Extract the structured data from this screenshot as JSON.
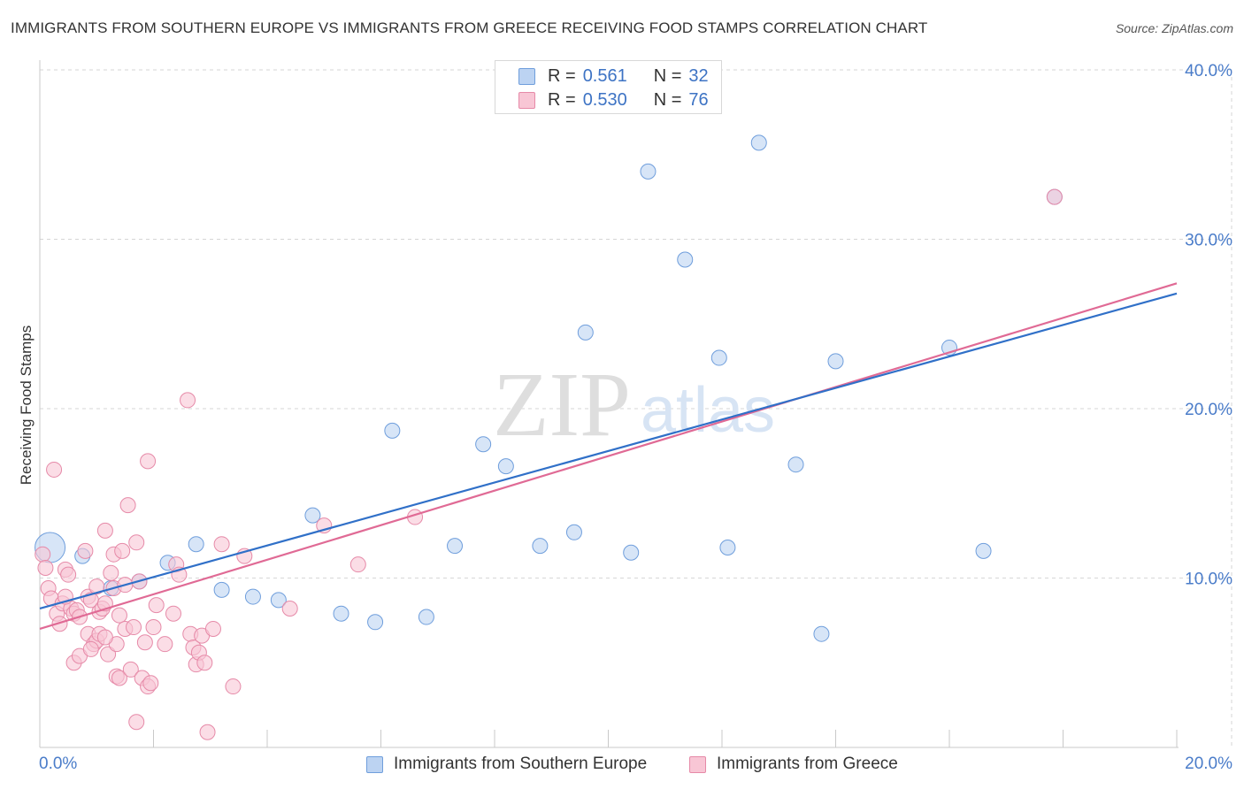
{
  "title": "IMMIGRANTS FROM SOUTHERN EUROPE VS IMMIGRANTS FROM GREECE RECEIVING FOOD STAMPS CORRELATION CHART",
  "source": "Source: ZipAtlas.com",
  "watermark": {
    "zip": "ZIP",
    "atlas": "atlas"
  },
  "legend": {
    "r_label": "R =",
    "n_label": "N =",
    "series": [
      {
        "name": "Immigrants from Southern Europe",
        "r": "0.561",
        "n": "32"
      },
      {
        "name": "Immigrants from Greece",
        "r": "0.530",
        "n": "76"
      }
    ]
  },
  "colors": {
    "blue_fill": "#bcd3f2",
    "blue_stroke": "#6f9edc",
    "blue_line": "#3070c8",
    "pink_fill": "#f8c6d5",
    "pink_stroke": "#e68aa8",
    "pink_line": "#e06a95",
    "tick_label": "#4a7cc9",
    "grid": "#d6d6d6"
  },
  "chart_data": {
    "type": "scatter",
    "title": "IMMIGRANTS FROM SOUTHERN EUROPE VS IMMIGRANTS FROM GREECE RECEIVING FOOD STAMPS CORRELATION CHART",
    "xlabel": "",
    "ylabel": "Receiving Food Stamps",
    "xlim": [
      0,
      20
    ],
    "ylim": [
      0,
      40
    ],
    "x_tick_labels": [
      "0.0%",
      "20.0%"
    ],
    "y_ticks": [
      10,
      20,
      30,
      40
    ],
    "y_tick_labels": [
      "10.0%",
      "20.0%",
      "30.0%",
      "40.0%"
    ],
    "grid": true,
    "legend_position": "top-center",
    "series": [
      {
        "name": "Immigrants from Southern Europe",
        "r": 0.561,
        "n": 32,
        "trend": {
          "x0": 0,
          "y0": 8.2,
          "x1": 20,
          "y1": 26.8
        },
        "points": [
          {
            "x": 0.18,
            "y": 11.8,
            "big": true
          },
          {
            "x": 0.75,
            "y": 11.3
          },
          {
            "x": 1.25,
            "y": 9.4
          },
          {
            "x": 1.75,
            "y": 9.8
          },
          {
            "x": 2.25,
            "y": 10.9
          },
          {
            "x": 2.75,
            "y": 12.0
          },
          {
            "x": 3.2,
            "y": 9.3
          },
          {
            "x": 3.75,
            "y": 8.9
          },
          {
            "x": 4.2,
            "y": 8.7
          },
          {
            "x": 4.8,
            "y": 13.7
          },
          {
            "x": 5.3,
            "y": 7.9
          },
          {
            "x": 5.9,
            "y": 7.4
          },
          {
            "x": 6.2,
            "y": 18.7
          },
          {
            "x": 6.8,
            "y": 7.7
          },
          {
            "x": 7.3,
            "y": 11.9
          },
          {
            "x": 7.8,
            "y": 17.9
          },
          {
            "x": 8.2,
            "y": 16.6
          },
          {
            "x": 8.8,
            "y": 11.9
          },
          {
            "x": 9.4,
            "y": 12.7
          },
          {
            "x": 9.6,
            "y": 24.5
          },
          {
            "x": 10.4,
            "y": 11.5
          },
          {
            "x": 10.7,
            "y": 34.0
          },
          {
            "x": 11.35,
            "y": 28.8
          },
          {
            "x": 11.95,
            "y": 23.0
          },
          {
            "x": 12.1,
            "y": 11.8
          },
          {
            "x": 12.65,
            "y": 35.7
          },
          {
            "x": 13.3,
            "y": 16.7
          },
          {
            "x": 13.75,
            "y": 6.7
          },
          {
            "x": 14.0,
            "y": 22.8
          },
          {
            "x": 16.0,
            "y": 23.6
          },
          {
            "x": 16.6,
            "y": 11.6
          },
          {
            "x": 17.85,
            "y": 32.5
          }
        ]
      },
      {
        "name": "Immigrants from Greece",
        "r": 0.53,
        "n": 76,
        "trend": {
          "x0": 0,
          "y0": 7.0,
          "x1": 20,
          "y1": 27.4
        },
        "points": [
          {
            "x": 0.05,
            "y": 11.4
          },
          {
            "x": 0.1,
            "y": 10.6
          },
          {
            "x": 0.15,
            "y": 9.4
          },
          {
            "x": 0.2,
            "y": 8.8
          },
          {
            "x": 0.25,
            "y": 16.4
          },
          {
            "x": 0.3,
            "y": 7.9
          },
          {
            "x": 0.35,
            "y": 7.3
          },
          {
            "x": 0.4,
            "y": 8.5
          },
          {
            "x": 0.45,
            "y": 10.5
          },
          {
            "x": 0.5,
            "y": 10.2
          },
          {
            "x": 0.55,
            "y": 8.2
          },
          {
            "x": 0.6,
            "y": 7.9
          },
          {
            "x": 0.65,
            "y": 8.1
          },
          {
            "x": 0.7,
            "y": 7.7
          },
          {
            "x": 0.6,
            "y": 5.0
          },
          {
            "x": 0.7,
            "y": 5.4
          },
          {
            "x": 0.8,
            "y": 11.6
          },
          {
            "x": 0.85,
            "y": 8.9
          },
          {
            "x": 0.85,
            "y": 6.7
          },
          {
            "x": 0.9,
            "y": 8.7
          },
          {
            "x": 0.95,
            "y": 6.1
          },
          {
            "x": 1.0,
            "y": 6.3
          },
          {
            "x": 1.0,
            "y": 9.5
          },
          {
            "x": 1.05,
            "y": 6.7
          },
          {
            "x": 1.05,
            "y": 8.0
          },
          {
            "x": 1.1,
            "y": 8.2
          },
          {
            "x": 1.15,
            "y": 8.5
          },
          {
            "x": 1.15,
            "y": 12.8
          },
          {
            "x": 1.2,
            "y": 5.5
          },
          {
            "x": 1.25,
            "y": 10.3
          },
          {
            "x": 1.3,
            "y": 11.4
          },
          {
            "x": 1.3,
            "y": 9.4
          },
          {
            "x": 1.35,
            "y": 6.1
          },
          {
            "x": 1.35,
            "y": 4.2
          },
          {
            "x": 1.4,
            "y": 4.1
          },
          {
            "x": 1.4,
            "y": 7.8
          },
          {
            "x": 1.45,
            "y": 11.6
          },
          {
            "x": 1.5,
            "y": 9.6
          },
          {
            "x": 1.5,
            "y": 7.0
          },
          {
            "x": 1.55,
            "y": 14.3
          },
          {
            "x": 1.6,
            "y": 4.6
          },
          {
            "x": 1.65,
            "y": 7.1
          },
          {
            "x": 1.7,
            "y": 12.1
          },
          {
            "x": 1.7,
            "y": 1.5
          },
          {
            "x": 1.75,
            "y": 9.8
          },
          {
            "x": 1.8,
            "y": 4.1
          },
          {
            "x": 1.85,
            "y": 6.2
          },
          {
            "x": 1.9,
            "y": 16.9
          },
          {
            "x": 1.9,
            "y": 3.6
          },
          {
            "x": 1.95,
            "y": 3.8
          },
          {
            "x": 2.0,
            "y": 7.1
          },
          {
            "x": 2.05,
            "y": 8.4
          },
          {
            "x": 2.2,
            "y": 6.1
          },
          {
            "x": 2.35,
            "y": 7.9
          },
          {
            "x": 2.4,
            "y": 10.8
          },
          {
            "x": 2.45,
            "y": 10.2
          },
          {
            "x": 2.6,
            "y": 20.5
          },
          {
            "x": 2.65,
            "y": 6.7
          },
          {
            "x": 2.7,
            "y": 5.9
          },
          {
            "x": 2.75,
            "y": 4.9
          },
          {
            "x": 2.8,
            "y": 5.6
          },
          {
            "x": 2.85,
            "y": 6.6
          },
          {
            "x": 2.9,
            "y": 5.0
          },
          {
            "x": 2.95,
            "y": 0.9
          },
          {
            "x": 3.05,
            "y": 7.0
          },
          {
            "x": 3.2,
            "y": 12.0
          },
          {
            "x": 3.4,
            "y": 3.6
          },
          {
            "x": 3.6,
            "y": 11.3
          },
          {
            "x": 4.4,
            "y": 8.2
          },
          {
            "x": 5.0,
            "y": 13.1
          },
          {
            "x": 5.6,
            "y": 10.8
          },
          {
            "x": 6.6,
            "y": 13.6
          },
          {
            "x": 17.85,
            "y": 32.5
          },
          {
            "x": 0.9,
            "y": 5.8
          },
          {
            "x": 1.15,
            "y": 6.5
          },
          {
            "x": 0.45,
            "y": 8.9
          }
        ]
      }
    ]
  }
}
